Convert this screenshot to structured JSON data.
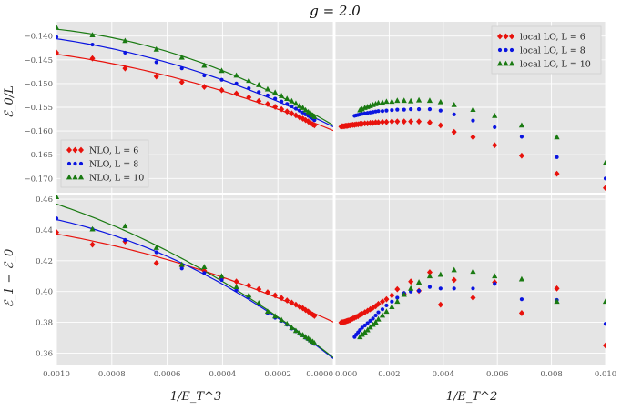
{
  "chart_data": {
    "type": "scatter",
    "title": "g = 2.0",
    "xlabels": {
      "left": "1/E_T^3",
      "right": "1/E_T^2"
    },
    "ylabels": {
      "top": "ℰ_0/L",
      "bottom": "ℰ_1 − ℰ_0"
    },
    "colors": {
      "L6": "#e8120c",
      "L8": "#0a14e0",
      "L10": "#1a7a12",
      "panel_bg": "#e5e5e5",
      "grid": "#ffffff"
    },
    "xlim": {
      "left": [
        0.001,
        0.0
      ],
      "right": [
        0.0,
        0.01
      ]
    },
    "ylim": {
      "top": [
        -0.173,
        -0.137
      ],
      "bottom": [
        0.352,
        0.463
      ]
    },
    "xticks": {
      "left": [
        {
          "v": 0.001,
          "label": "0.0010"
        },
        {
          "v": 0.0008,
          "label": "0.0008"
        },
        {
          "v": 0.0006,
          "label": "0.0006"
        },
        {
          "v": 0.0004,
          "label": "0.0004"
        },
        {
          "v": 0.0002,
          "label": "0.0002"
        },
        {
          "v": 0.0,
          "label": "0.0000"
        }
      ],
      "right": [
        {
          "v": 0.0,
          "label": "0.000"
        },
        {
          "v": 0.002,
          "label": "0.002"
        },
        {
          "v": 0.004,
          "label": "0.004"
        },
        {
          "v": 0.006,
          "label": "0.006"
        },
        {
          "v": 0.008,
          "label": "0.008"
        },
        {
          "v": 0.01,
          "label": "0.010"
        }
      ]
    },
    "yticks": {
      "top": [
        {
          "v": -0.14,
          "label": "−0.140"
        },
        {
          "v": -0.145,
          "label": "−0.145"
        },
        {
          "v": -0.15,
          "label": "−0.150"
        },
        {
          "v": -0.155,
          "label": "−0.155"
        },
        {
          "v": -0.16,
          "label": "−0.160"
        },
        {
          "v": -0.165,
          "label": "−0.165"
        },
        {
          "v": -0.17,
          "label": "−0.170"
        }
      ],
      "bottom": [
        {
          "v": 0.46,
          "label": "0.46"
        },
        {
          "v": 0.44,
          "label": "0.44"
        },
        {
          "v": 0.42,
          "label": "0.42"
        },
        {
          "v": 0.4,
          "label": "0.40"
        },
        {
          "v": 0.38,
          "label": "0.38"
        },
        {
          "v": 0.36,
          "label": "0.36"
        }
      ]
    },
    "panels": [
      {
        "id": "top-left",
        "xaxis": "left",
        "yaxis": "top",
        "legend": {
          "position": "lower-left",
          "entries": [
            "NLO, L = 6",
            "NLO, L = 8",
            "NLO, L = 10"
          ]
        },
        "series": [
          {
            "name": "NLO, L = 6",
            "color": "L6",
            "marker": "diamond",
            "fit": true,
            "x": [
              0.001,
              0.00087,
              0.000752,
              0.000639,
              0.000547,
              0.000466,
              0.000403,
              0.00035,
              0.000305,
              0.000269,
              0.000237,
              0.00021,
              0.000187,
              0.000167,
              0.00015,
              0.000135,
              0.000122,
              0.00011,
              0.0001,
              9e-05,
              8.2e-05,
              7.4e-05,
              6.8e-05
            ],
            "y": [
              -0.1435,
              -0.1447,
              -0.1468,
              -0.1485,
              -0.1497,
              -0.1507,
              -0.1514,
              -0.1521,
              -0.1529,
              -0.1537,
              -0.1543,
              -0.1549,
              -0.1554,
              -0.1559,
              -0.1563,
              -0.1567,
              -0.1571,
              -0.1574,
              -0.1577,
              -0.158,
              -0.1583,
              -0.1586,
              -0.1588
            ]
          },
          {
            "name": "NLO, L = 8",
            "color": "L8",
            "marker": "circle",
            "fit": true,
            "x": [
              0.001,
              0.00087,
              0.000752,
              0.000639,
              0.000547,
              0.000466,
              0.000403,
              0.00035,
              0.000305,
              0.000269,
              0.000237,
              0.00021,
              0.000187,
              0.000167,
              0.00015,
              0.000135,
              0.000122,
              0.00011,
              0.0001,
              9e-05,
              8.2e-05,
              7.4e-05,
              6.8e-05
            ],
            "y": [
              -0.1402,
              -0.1418,
              -0.1435,
              -0.1455,
              -0.1468,
              -0.1483,
              -0.1492,
              -0.15,
              -0.151,
              -0.1518,
              -0.1525,
              -0.1532,
              -0.1538,
              -0.1543,
              -0.1548,
              -0.1553,
              -0.1557,
              -0.1561,
              -0.1565,
              -0.1568,
              -0.1571,
              -0.1574,
              -0.1577
            ]
          },
          {
            "name": "NLO, L = 10",
            "color": "L10",
            "marker": "triangle",
            "fit": true,
            "x": [
              0.001,
              0.00087,
              0.000752,
              0.000639,
              0.000547,
              0.000466,
              0.000403,
              0.00035,
              0.000305,
              0.000269,
              0.000237,
              0.00021,
              0.000187,
              0.000167,
              0.00015,
              0.000135,
              0.000122,
              0.00011,
              0.0001,
              9e-05,
              8.2e-05,
              7.4e-05,
              6.8e-05
            ],
            "y": [
              -0.1382,
              -0.1398,
              -0.141,
              -0.1428,
              -0.1445,
              -0.1462,
              -0.1473,
              -0.1483,
              -0.1494,
              -0.1503,
              -0.1512,
              -0.1519,
              -0.1526,
              -0.1532,
              -0.1537,
              -0.1542,
              -0.1547,
              -0.1551,
              -0.1556,
              -0.156,
              -0.1563,
              -0.1567,
              -0.157
            ]
          }
        ]
      },
      {
        "id": "top-right",
        "xaxis": "right",
        "yaxis": "top",
        "legend": {
          "position": "upper-right",
          "entries": [
            "local LO, L = 6",
            "local LO, L = 8",
            "local LO, L = 10"
          ]
        },
        "series": [
          {
            "name": "local LO, L = 6",
            "color": "L6",
            "marker": "diamond",
            "x": [
              0.01,
              0.0082,
              0.0069,
              0.0059,
              0.0051,
              0.0044,
              0.0039,
              0.0035,
              0.0031,
              0.0028,
              0.00255,
              0.0023,
              0.0021,
              0.0019,
              0.00175,
              0.0016,
              0.0015,
              0.0014,
              0.0013,
              0.0012,
              0.0011,
              0.001,
              0.00092,
              0.00085,
              0.00078,
              0.00072,
              0.00066,
              0.0006,
              0.00055,
              0.0005,
              0.00046,
              0.00042,
              0.00038,
              0.00034,
              0.0003,
              0.00026,
              0.00022
            ],
            "y": [
              -0.172,
              -0.169,
              -0.1652,
              -0.163,
              -0.1613,
              -0.1602,
              -0.1588,
              -0.1582,
              -0.158,
              -0.158,
              -0.158,
              -0.158,
              -0.158,
              -0.1581,
              -0.1581,
              -0.1582,
              -0.1582,
              -0.1583,
              -0.1583,
              -0.1584,
              -0.1584,
              -0.1585,
              -0.1585,
              -0.1586,
              -0.1586,
              -0.1587,
              -0.1587,
              -0.1587,
              -0.1588,
              -0.1588,
              -0.1589,
              -0.1589,
              -0.1589,
              -0.159,
              -0.159,
              -0.159,
              -0.1591
            ]
          },
          {
            "name": "local LO, L = 8",
            "color": "L8",
            "marker": "circle",
            "x": [
              0.01,
              0.0082,
              0.0069,
              0.0059,
              0.0051,
              0.0044,
              0.0039,
              0.0035,
              0.0031,
              0.0028,
              0.00255,
              0.0023,
              0.0021,
              0.0019,
              0.00175,
              0.0016,
              0.0015,
              0.0014,
              0.0013,
              0.0012,
              0.0011,
              0.001,
              0.00092,
              0.00085,
              0.00078,
              0.00072
            ],
            "y": [
              -0.17,
              -0.1655,
              -0.1612,
              -0.1592,
              -0.1578,
              -0.1565,
              -0.1557,
              -0.1554,
              -0.1554,
              -0.1554,
              -0.1555,
              -0.1555,
              -0.1556,
              -0.1557,
              -0.1558,
              -0.1558,
              -0.1559,
              -0.156,
              -0.1561,
              -0.1562,
              -0.1563,
              -0.1564,
              -0.1565,
              -0.1566,
              -0.1567,
              -0.1568
            ]
          },
          {
            "name": "local LO, L = 10",
            "color": "L10",
            "marker": "triangle",
            "x": [
              0.01,
              0.0082,
              0.0069,
              0.0059,
              0.0051,
              0.0044,
              0.0039,
              0.0035,
              0.0031,
              0.0028,
              0.00255,
              0.0023,
              0.0021,
              0.0019,
              0.00175,
              0.0016,
              0.0015,
              0.0014,
              0.0013,
              0.0012,
              0.0011,
              0.001,
              0.00092
            ],
            "y": [
              -0.1667,
              -0.1613,
              -0.1588,
              -0.1568,
              -0.1555,
              -0.1545,
              -0.1539,
              -0.1536,
              -0.1535,
              -0.1537,
              -0.1536,
              -0.1536,
              -0.1538,
              -0.1538,
              -0.154,
              -0.1541,
              -0.1543,
              -0.1545,
              -0.1547,
              -0.1549,
              -0.1551,
              -0.1554,
              -0.1556
            ]
          }
        ]
      },
      {
        "id": "bottom-left",
        "xaxis": "left",
        "yaxis": "bottom",
        "series": [
          {
            "name": "NLO, L = 6",
            "color": "L6",
            "marker": "diamond",
            "fit": true,
            "x": [
              0.001,
              0.00087,
              0.000752,
              0.000639,
              0.000547,
              0.000466,
              0.000403,
              0.00035,
              0.000305,
              0.000269,
              0.000237,
              0.00021,
              0.000187,
              0.000167,
              0.00015,
              0.000135,
              0.000122,
              0.00011,
              0.0001,
              9e-05,
              8.2e-05,
              7.4e-05,
              6.8e-05
            ],
            "y": [
              0.4385,
              0.4305,
              0.4325,
              0.4185,
              0.4165,
              0.4135,
              0.4085,
              0.4065,
              0.404,
              0.4015,
              0.3995,
              0.3975,
              0.3958,
              0.3942,
              0.3928,
              0.3915,
              0.3902,
              0.3892,
              0.388,
              0.387,
              0.386,
              0.385,
              0.3842
            ]
          },
          {
            "name": "NLO, L = 8",
            "color": "L8",
            "marker": "circle",
            "fit": true,
            "x": [
              0.001,
              0.00087,
              0.000752,
              0.000639,
              0.000547,
              0.000466,
              0.000403,
              0.00035,
              0.000305,
              0.000269,
              0.000237,
              0.00021,
              0.000187,
              0.000167,
              0.00015,
              0.000135,
              0.000122,
              0.00011,
              0.0001,
              9e-05,
              8.2e-05,
              7.4e-05,
              6.8e-05
            ],
            "y": [
              0.4475,
              0.4405,
              0.4335,
              0.4255,
              0.415,
              0.412,
              0.4075,
              0.401,
              0.3965,
              0.3915,
              0.386,
              0.383,
              0.381,
              0.3785,
              0.376,
              0.3742,
              0.3725,
              0.3715,
              0.37,
              0.369,
              0.3678,
              0.3668,
              0.366
            ]
          },
          {
            "name": "NLO, L = 10",
            "color": "L10",
            "marker": "triangle",
            "fit": true,
            "x": [
              0.001,
              0.00087,
              0.000752,
              0.000639,
              0.000547,
              0.000466,
              0.000403,
              0.00035,
              0.000305,
              0.000269,
              0.000237,
              0.00021,
              0.000187,
              0.000167,
              0.00015,
              0.000135,
              0.000122,
              0.00011,
              0.0001,
              9e-05,
              8.2e-05,
              7.4e-05,
              6.8e-05
            ],
            "y": [
              0.4615,
              0.4405,
              0.4425,
              0.4285,
              0.4175,
              0.416,
              0.41,
              0.403,
              0.3975,
              0.3925,
              0.387,
              0.384,
              0.3815,
              0.379,
              0.3765,
              0.3745,
              0.373,
              0.3718,
              0.3705,
              0.3695,
              0.3685,
              0.3675,
              0.3665
            ]
          }
        ]
      },
      {
        "id": "bottom-right",
        "xaxis": "right",
        "yaxis": "bottom",
        "series": [
          {
            "name": "local LO, L = 6",
            "color": "L6",
            "marker": "diamond",
            "x": [
              0.01,
              0.0082,
              0.0069,
              0.0059,
              0.0051,
              0.0044,
              0.0039,
              0.0035,
              0.0031,
              0.0028,
              0.00255,
              0.0023,
              0.0021,
              0.0019,
              0.00175,
              0.0016,
              0.0015,
              0.0014,
              0.0013,
              0.0012,
              0.0011,
              0.001,
              0.00092,
              0.00085,
              0.00078,
              0.00072,
              0.00066,
              0.0006,
              0.00055,
              0.0005,
              0.00046,
              0.00042,
              0.00038,
              0.00034,
              0.0003,
              0.00026,
              0.00022
            ],
            "y": [
              0.365,
              0.402,
              0.386,
              0.406,
              0.396,
              0.4075,
              0.3915,
              0.4125,
              0.4005,
              0.4065,
              0.3985,
              0.4015,
              0.3975,
              0.395,
              0.3935,
              0.392,
              0.3905,
              0.3895,
              0.3885,
              0.3875,
              0.3865,
              0.3855,
              0.385,
              0.384,
              0.3835,
              0.383,
              0.3825,
              0.382,
              0.3815,
              0.3812,
              0.381,
              0.3808,
              0.3805,
              0.3803,
              0.3801,
              0.38,
              0.3798
            ]
          },
          {
            "name": "local LO, L = 8",
            "color": "L8",
            "marker": "circle",
            "x": [
              0.01,
              0.0082,
              0.0069,
              0.0059,
              0.0051,
              0.0044,
              0.0039,
              0.0035,
              0.0031,
              0.0028,
              0.00255,
              0.0023,
              0.0021,
              0.0019,
              0.00175,
              0.0016,
              0.0015,
              0.0014,
              0.0013,
              0.0012,
              0.0011,
              0.001,
              0.00092,
              0.00085,
              0.00078,
              0.00072
            ],
            "y": [
              0.379,
              0.3945,
              0.395,
              0.405,
              0.402,
              0.402,
              0.402,
              0.403,
              0.4005,
              0.4,
              0.399,
              0.396,
              0.3935,
              0.391,
              0.3885,
              0.3865,
              0.3845,
              0.3825,
              0.381,
              0.3795,
              0.378,
              0.3765,
              0.375,
              0.3735,
              0.372,
              0.3705
            ]
          },
          {
            "name": "local LO, L = 10",
            "color": "L10",
            "marker": "triangle",
            "x": [
              0.01,
              0.0082,
              0.0069,
              0.0059,
              0.0051,
              0.0044,
              0.0039,
              0.0035,
              0.0031,
              0.0028,
              0.00255,
              0.0023,
              0.0021,
              0.0019,
              0.00175,
              0.0016,
              0.0015,
              0.0014,
              0.0013,
              0.0012,
              0.0011,
              0.001,
              0.00092
            ],
            "y": [
              0.3935,
              0.3935,
              0.408,
              0.41,
              0.413,
              0.414,
              0.411,
              0.41,
              0.406,
              0.402,
              0.398,
              0.3935,
              0.39,
              0.387,
              0.3845,
              0.382,
              0.38,
              0.3785,
              0.3768,
              0.375,
              0.3735,
              0.372,
              0.3705
            ]
          }
        ]
      }
    ]
  }
}
